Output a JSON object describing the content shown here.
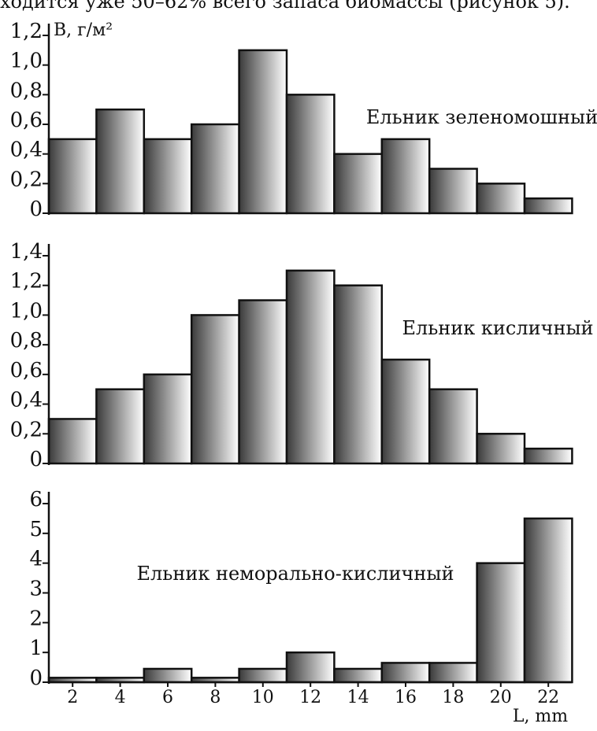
{
  "caption_fragment": "ходится уже 50–62% всего запаса биомассы (рисунок 5).",
  "chart_data": {
    "type": "bar",
    "xlabel": "L, mm",
    "x_ticks": [
      "2",
      "4",
      "6",
      "8",
      "10",
      "12",
      "14",
      "16",
      "18",
      "20",
      "22"
    ],
    "bar_fill": {
      "dark": "#3a3a3a",
      "light": "#ffffff"
    },
    "panels": [
      {
        "label": "Ельник зеленомошный",
        "ylabel": "B, г/м²",
        "ylim": [
          0,
          1.2
        ],
        "y_ticks": [
          {
            "value": 0,
            "label": "0"
          },
          {
            "value": 0.2,
            "label": "0,2"
          },
          {
            "value": 0.4,
            "label": "0,4"
          },
          {
            "value": 0.6,
            "label": "0,6"
          },
          {
            "value": 0.8,
            "label": "0,8"
          },
          {
            "value": 1.0,
            "label": "1,0"
          },
          {
            "value": 1.2,
            "label": "1,2"
          }
        ],
        "values": [
          0.5,
          0.7,
          0.5,
          0.6,
          1.1,
          0.8,
          0.4,
          0.5,
          0.3,
          0.2,
          0.1
        ]
      },
      {
        "label": "Ельник кисличный",
        "ylabel": "",
        "ylim": [
          0,
          1.4
        ],
        "y_ticks": [
          {
            "value": 0,
            "label": "0"
          },
          {
            "value": 0.2,
            "label": "0,2"
          },
          {
            "value": 0.4,
            "label": "0,4"
          },
          {
            "value": 0.6,
            "label": "0,6"
          },
          {
            "value": 0.8,
            "label": "0,8"
          },
          {
            "value": 1.0,
            "label": "1,0"
          },
          {
            "value": 1.2,
            "label": "1,2"
          },
          {
            "value": 1.4,
            "label": "1,4"
          }
        ],
        "values": [
          0.3,
          0.5,
          0.6,
          1.0,
          1.1,
          1.3,
          1.2,
          0.7,
          0.5,
          0.2,
          0.1
        ]
      },
      {
        "label": "Ельник неморально-кисличный",
        "ylabel": "",
        "ylim": [
          0,
          6
        ],
        "y_ticks": [
          {
            "value": 0,
            "label": "0"
          },
          {
            "value": 1,
            "label": "1"
          },
          {
            "value": 2,
            "label": "2"
          },
          {
            "value": 3,
            "label": "3"
          },
          {
            "value": 4,
            "label": "4"
          },
          {
            "value": 5,
            "label": "5"
          },
          {
            "value": 6,
            "label": "6"
          }
        ],
        "values": [
          0.15,
          0.15,
          0.45,
          0.15,
          0.45,
          1.0,
          0.45,
          0.65,
          0.65,
          4.0,
          5.5
        ]
      }
    ]
  }
}
